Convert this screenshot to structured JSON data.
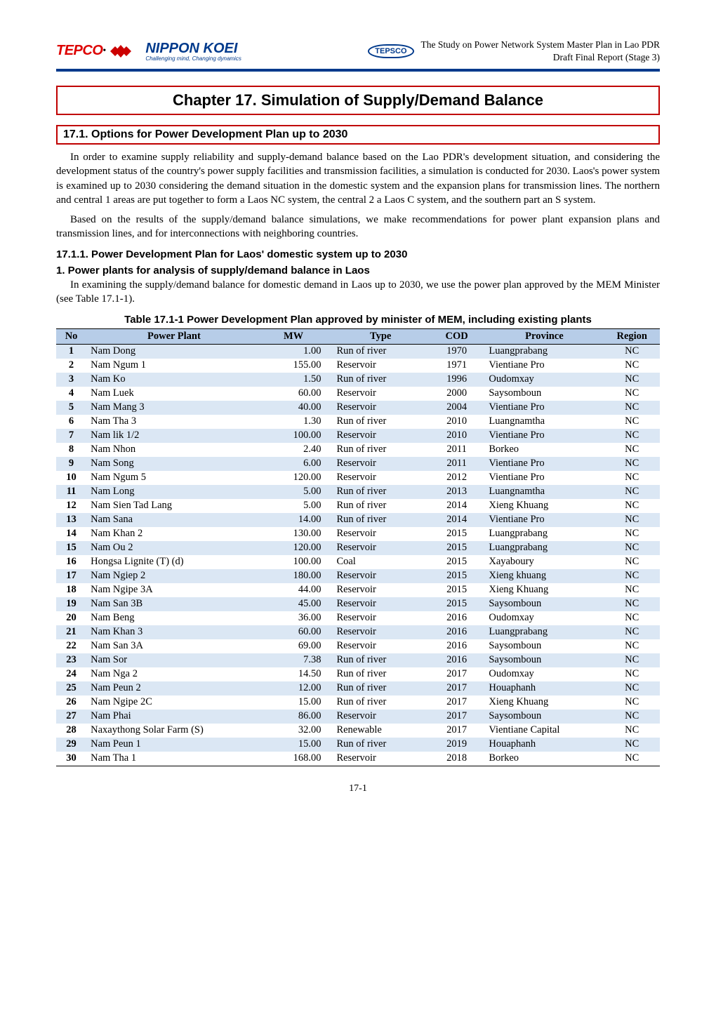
{
  "header": {
    "tepco": "TEPCO",
    "nippon": "NIPPON KOEI",
    "nippon_sub": "Challenging mind, Changing dynamics",
    "tepsco": "TEPSCO",
    "title_line1": "The Study on Power Network System Master Plan in Lao PDR",
    "title_line2": "Draft Final Report (Stage 3)"
  },
  "chapter": {
    "title": "Chapter 17.  Simulation of Supply/Demand Balance"
  },
  "section": {
    "number_title": "17.1. Options for Power Development Plan up to 2030"
  },
  "para1": "In order to examine supply reliability and supply-demand balance based on the Lao PDR's development situation, and considering the development status of the country's power supply facilities and transmission facilities, a simulation is conducted for 2030. Laos's power system is examined up to 2030 considering the demand situation in the domestic system and the expansion plans for transmission lines. The northern and central 1 areas are put together to form a Laos NC system, the central 2 a Laos C system, and the southern part an S system.",
  "para2": "Based on the results of the supply/demand balance simulations, we make recommendations for power plant expansion plans and transmission lines, and for interconnections with neighboring countries.",
  "subsection": "17.1.1. Power Development Plan for Laos' domestic system up to 2030",
  "subsub": "1.    Power plants for analysis of supply/demand balance in Laos",
  "subsub_text": "In examining the supply/demand balance for domestic demand in Laos up to 2030, we use the power plan approved by the MEM Minister (see Table 17.1-1).",
  "table_caption": "Table 17.1-1 Power Development Plan approved by minister of MEM, including existing plants",
  "table": {
    "headers": [
      "No",
      "Power Plant",
      "MW",
      "Type",
      "COD",
      "Province",
      "Region"
    ],
    "rows": [
      {
        "no": "1",
        "plant": "Nam Dong",
        "mw": "1.00",
        "type": "Run of river",
        "cod": "1970",
        "prov": "Luangprabang",
        "reg": "NC"
      },
      {
        "no": "2",
        "plant": "Nam Ngum 1",
        "mw": "155.00",
        "type": "Reservoir",
        "cod": "1971",
        "prov": "Vientiane Pro",
        "reg": "NC"
      },
      {
        "no": "3",
        "plant": "Nam Ko",
        "mw": "1.50",
        "type": "Run of river",
        "cod": "1996",
        "prov": "Oudomxay",
        "reg": "NC"
      },
      {
        "no": "4",
        "plant": "Nam Luek",
        "mw": "60.00",
        "type": "Reservoir",
        "cod": "2000",
        "prov": "Saysomboun",
        "reg": "NC"
      },
      {
        "no": "5",
        "plant": "Nam Mang 3",
        "mw": "40.00",
        "type": "Reservoir",
        "cod": "2004",
        "prov": "Vientiane Pro",
        "reg": "NC"
      },
      {
        "no": "6",
        "plant": "Nam Tha 3",
        "mw": "1.30",
        "type": "Run of river",
        "cod": "2010",
        "prov": "Luangnamtha",
        "reg": "NC"
      },
      {
        "no": "7",
        "plant": "Nam lik 1/2",
        "mw": "100.00",
        "type": "Reservoir",
        "cod": "2010",
        "prov": "Vientiane Pro",
        "reg": "NC"
      },
      {
        "no": "8",
        "plant": "Nam Nhon",
        "mw": "2.40",
        "type": "Run of river",
        "cod": "2011",
        "prov": "Borkeo",
        "reg": "NC"
      },
      {
        "no": "9",
        "plant": "Nam Song",
        "mw": "6.00",
        "type": "Reservoir",
        "cod": "2011",
        "prov": "Vientiane Pro",
        "reg": "NC"
      },
      {
        "no": "10",
        "plant": "Nam Ngum 5",
        "mw": "120.00",
        "type": "Reservoir",
        "cod": "2012",
        "prov": "Vientiane Pro",
        "reg": "NC"
      },
      {
        "no": "11",
        "plant": "Nam Long",
        "mw": "5.00",
        "type": "Run of river",
        "cod": "2013",
        "prov": "Luangnamtha",
        "reg": "NC"
      },
      {
        "no": "12",
        "plant": "Nam Sien Tad Lang",
        "mw": "5.00",
        "type": "Run of river",
        "cod": "2014",
        "prov": "Xieng Khuang",
        "reg": "NC"
      },
      {
        "no": "13",
        "plant": "Nam Sana",
        "mw": "14.00",
        "type": "Run of river",
        "cod": "2014",
        "prov": "Vientiane Pro",
        "reg": "NC"
      },
      {
        "no": "14",
        "plant": "Nam Khan 2",
        "mw": "130.00",
        "type": "Reservoir",
        "cod": "2015",
        "prov": "Luangprabang",
        "reg": "NC"
      },
      {
        "no": "15",
        "plant": "Nam Ou 2",
        "mw": "120.00",
        "type": "Reservoir",
        "cod": "2015",
        "prov": "Luangprabang",
        "reg": "NC"
      },
      {
        "no": "16",
        "plant": "Hongsa Lignite (T) (d)",
        "mw": "100.00",
        "type": "Coal",
        "cod": "2015",
        "prov": "Xayaboury",
        "reg": "NC"
      },
      {
        "no": "17",
        "plant": "Nam Ngiep 2",
        "mw": "180.00",
        "type": "Reservoir",
        "cod": "2015",
        "prov": "Xieng khuang",
        "reg": "NC"
      },
      {
        "no": "18",
        "plant": "Nam Ngipe 3A",
        "mw": "44.00",
        "type": "Reservoir",
        "cod": "2015",
        "prov": "Xieng Khuang",
        "reg": "NC"
      },
      {
        "no": "19",
        "plant": "Nam San 3B",
        "mw": "45.00",
        "type": "Reservoir",
        "cod": "2015",
        "prov": "Saysomboun",
        "reg": "NC"
      },
      {
        "no": "20",
        "plant": "Nam Beng",
        "mw": "36.00",
        "type": "Reservoir",
        "cod": "2016",
        "prov": "Oudomxay",
        "reg": "NC"
      },
      {
        "no": "21",
        "plant": "Nam Khan 3",
        "mw": "60.00",
        "type": "Reservoir",
        "cod": "2016",
        "prov": "Luangprabang",
        "reg": "NC"
      },
      {
        "no": "22",
        "plant": "Nam San 3A",
        "mw": "69.00",
        "type": "Reservoir",
        "cod": "2016",
        "prov": "Saysomboun",
        "reg": "NC"
      },
      {
        "no": "23",
        "plant": "Nam Sor",
        "mw": "7.38",
        "type": "Run of river",
        "cod": "2016",
        "prov": "Saysomboun",
        "reg": "NC"
      },
      {
        "no": "24",
        "plant": "Nam Nga 2",
        "mw": "14.50",
        "type": "Run of river",
        "cod": "2017",
        "prov": "Oudomxay",
        "reg": "NC"
      },
      {
        "no": "25",
        "plant": "Nam Peun 2",
        "mw": "12.00",
        "type": "Run of river",
        "cod": "2017",
        "prov": "Houaphanh",
        "reg": "NC"
      },
      {
        "no": "26",
        "plant": "Nam Ngipe 2C",
        "mw": "15.00",
        "type": "Run of river",
        "cod": "2017",
        "prov": "Xieng Khuang",
        "reg": "NC"
      },
      {
        "no": "27",
        "plant": "Nam Phai",
        "mw": "86.00",
        "type": "Reservoir",
        "cod": "2017",
        "prov": "Saysomboun",
        "reg": "NC"
      },
      {
        "no": "28",
        "plant": "Naxaythong Solar Farm (S)",
        "mw": "32.00",
        "type": "Renewable",
        "cod": "2017",
        "prov": "Vientiane Capital",
        "reg": "NC"
      },
      {
        "no": "29",
        "plant": "Nam Peun 1",
        "mw": "15.00",
        "type": "Run of river",
        "cod": "2019",
        "prov": "Houaphanh",
        "reg": "NC"
      },
      {
        "no": "30",
        "plant": "Nam Tha 1",
        "mw": "168.00",
        "type": "Reservoir",
        "cod": "2018",
        "prov": "Borkeo",
        "reg": "NC"
      }
    ]
  },
  "page_num": "17-1",
  "colors": {
    "header_shade": "#b7cde8",
    "row_shade": "#dbe7f4",
    "red_border": "#c00000",
    "blue_rule": "#003a8c"
  }
}
